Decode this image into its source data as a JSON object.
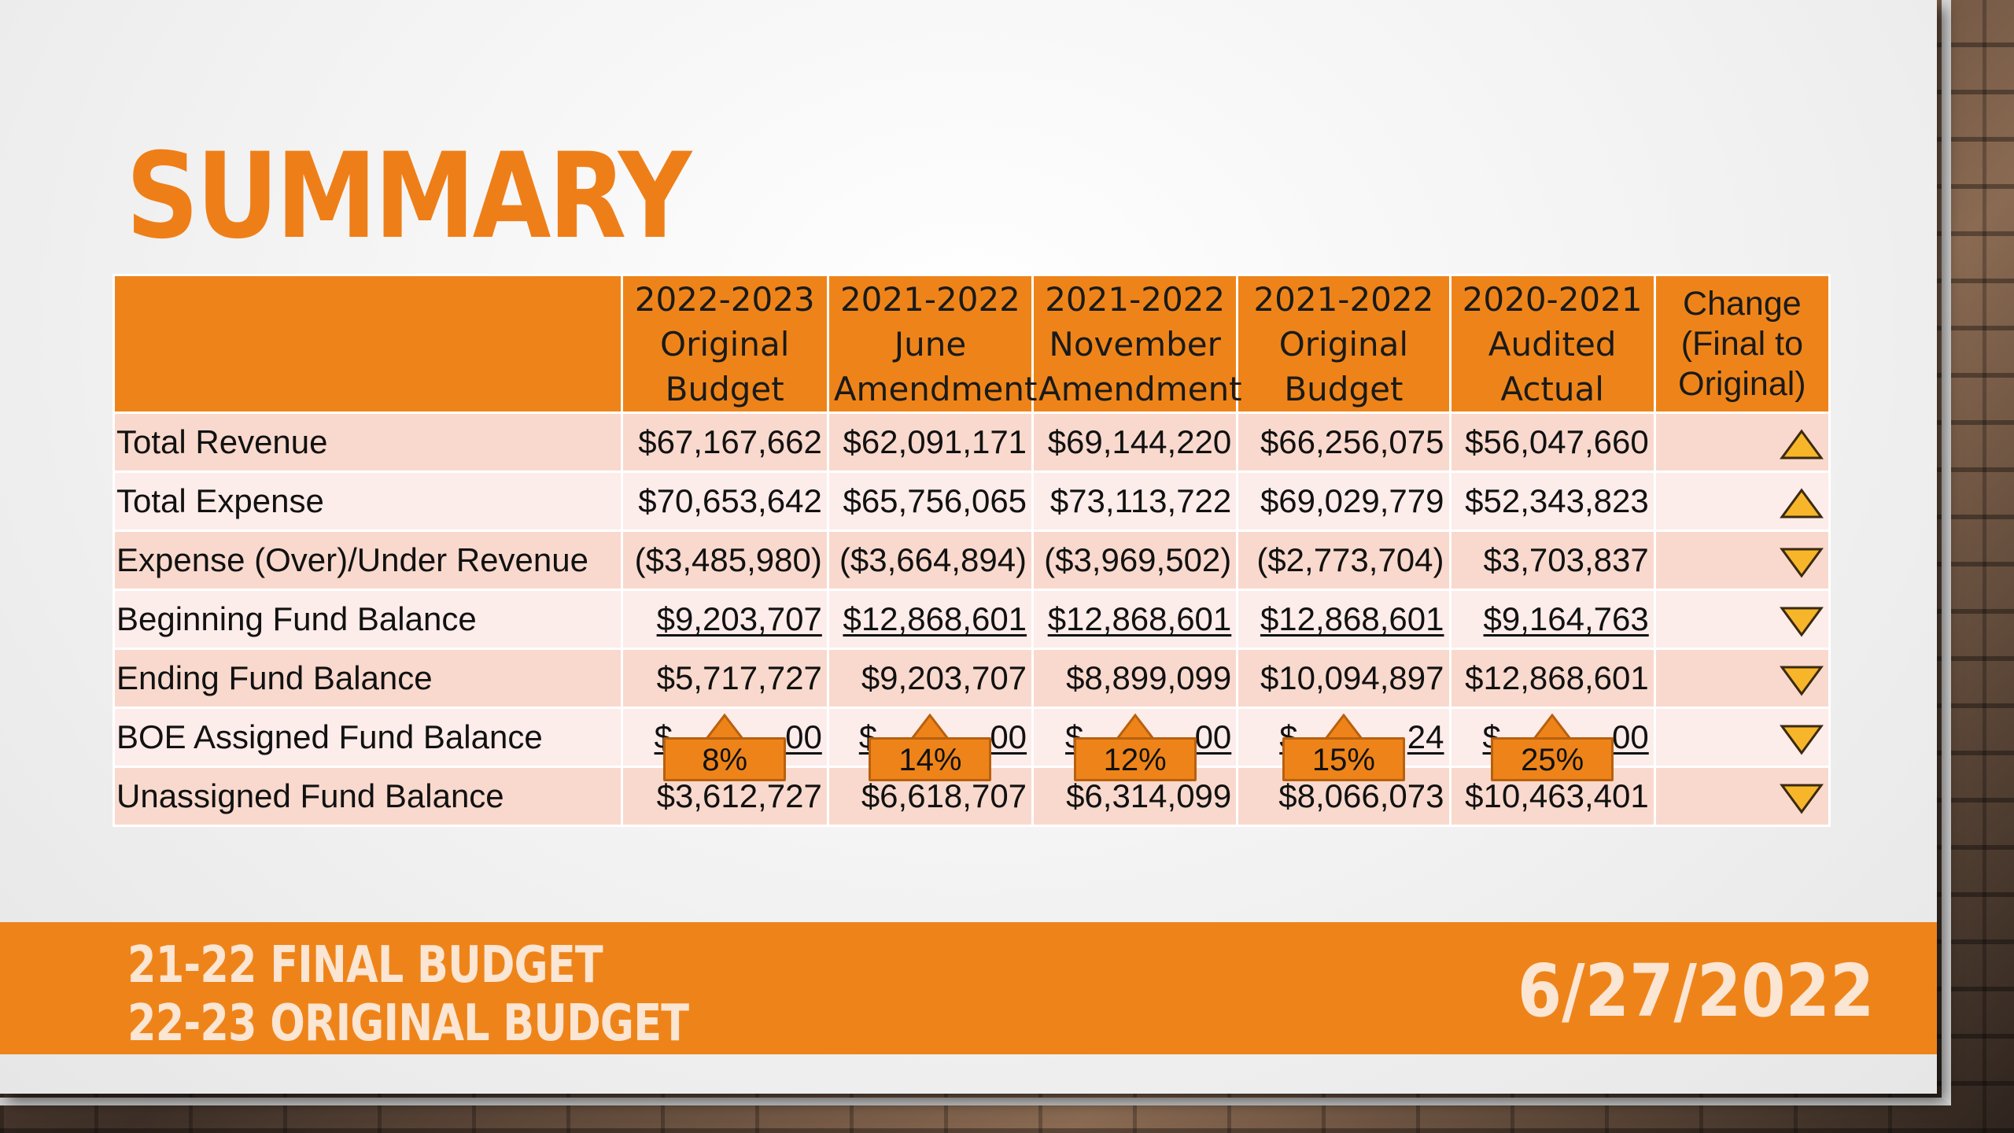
{
  "slide": {
    "title": "SUMMARY",
    "footer_line1": "21-22 FINAL BUDGET",
    "footer_line2": "22-23 ORIGINAL BUDGET",
    "footer_date": "6/27/2022"
  },
  "table": {
    "headers": [
      {
        "line1": "2022-2023",
        "line2": "Original",
        "line3": "Budget"
      },
      {
        "line1": "2021-2022",
        "line2": "June",
        "line3": "Amendment"
      },
      {
        "line1": "2021-2022",
        "line2": "November",
        "line3": "Amendment"
      },
      {
        "line1": "2021-2022",
        "line2": "Original",
        "line3": "Budget"
      },
      {
        "line1": "2020-2021",
        "line2": "Audited",
        "line3": "Actual"
      }
    ],
    "change_header": {
      "line1": "Change",
      "line2": "(Final to",
      "line3": "Original)"
    },
    "rows": [
      {
        "label": "Total Revenue",
        "values": [
          "$67,167,662",
          "$62,091,171",
          "$69,144,220",
          "$66,256,075",
          "$56,047,660"
        ],
        "change": "up"
      },
      {
        "label": "Total Expense",
        "values": [
          "$70,653,642",
          "$65,756,065",
          "$73,113,722",
          "$69,029,779",
          "$52,343,823"
        ],
        "change": "up"
      },
      {
        "label": "Expense (Over)/Under Revenue",
        "values": [
          "($3,485,980)",
          "($3,664,894)",
          "($3,969,502)",
          "($2,773,704)",
          "$3,703,837"
        ],
        "change": "down"
      },
      {
        "label": "Beginning Fund Balance",
        "values": [
          "$9,203,707",
          "$12,868,601",
          "$12,868,601",
          "$12,868,601",
          "$9,164,763"
        ],
        "change": "down"
      },
      {
        "label": "Ending Fund Balance",
        "values": [
          "$5,717,727",
          "$9,203,707",
          "$8,899,099",
          "$10,094,897",
          "$12,868,601"
        ],
        "change": "down"
      },
      {
        "label": "BOE Assigned Fund Balance",
        "visible_fragments": [
          [
            "$",
            "00"
          ],
          [
            "$",
            "00"
          ],
          [
            "$",
            "00"
          ],
          [
            "$",
            "24"
          ],
          [
            "$",
            "00"
          ]
        ],
        "callouts": [
          "8%",
          "14%",
          "12%",
          "15%",
          "25%"
        ],
        "change": "down"
      },
      {
        "label": "Unassigned Fund Balance",
        "values": [
          "$3,612,727",
          "$6,618,707",
          "$6,314,099",
          "$8,066,073",
          "$10,463,401"
        ],
        "change": "down"
      }
    ]
  },
  "colors": {
    "accent": "#ee8419",
    "negative": "#e8141b",
    "triangle": "#f7b52a"
  }
}
